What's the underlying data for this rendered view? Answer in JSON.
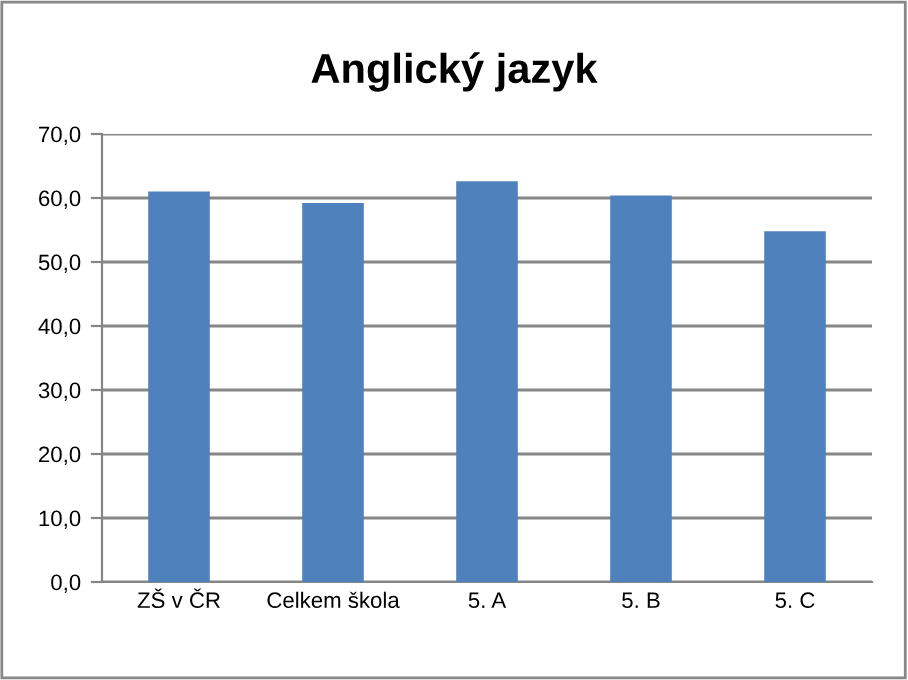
{
  "chart_data": {
    "type": "bar",
    "title": "Anglický jazyk",
    "categories": [
      "ZŠ v ČR",
      "Celkem škola",
      "5. A",
      "5. B",
      "5. C"
    ],
    "values": [
      61.0,
      59.2,
      62.6,
      60.4,
      54.8
    ],
    "color": "#4f81bd",
    "ylim": [
      0,
      70
    ],
    "yticks": [
      {
        "value": 0,
        "label": "0,0"
      },
      {
        "value": 10,
        "label": "10,0"
      },
      {
        "value": 20,
        "label": "20,0"
      },
      {
        "value": 30,
        "label": "30,0"
      },
      {
        "value": 40,
        "label": "40,0"
      },
      {
        "value": 50,
        "label": "50,0"
      },
      {
        "value": 60,
        "label": "60,0"
      },
      {
        "value": 70,
        "label": "70,0"
      }
    ],
    "grid": "y",
    "legend": false
  }
}
